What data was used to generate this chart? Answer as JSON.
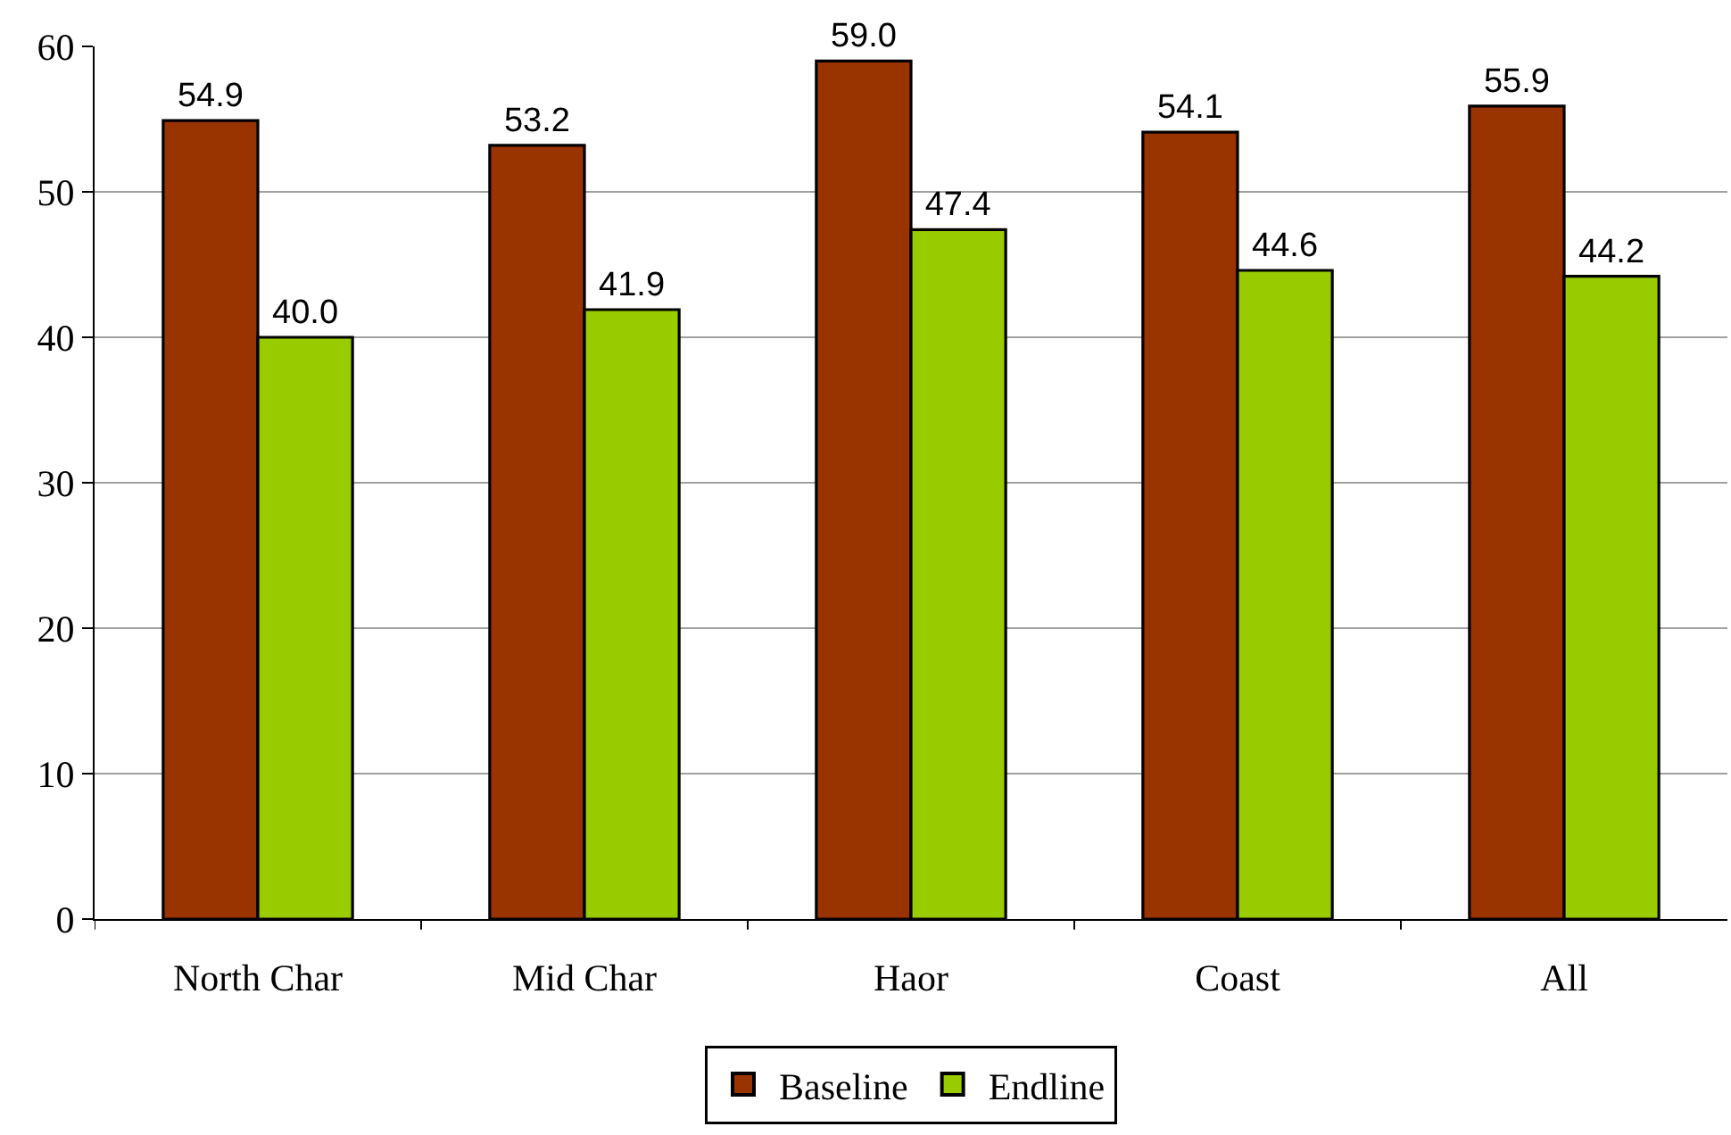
{
  "chart_data": {
    "type": "bar",
    "categories": [
      "North Char",
      "Mid Char",
      "Haor",
      "Coast",
      "All"
    ],
    "series": [
      {
        "name": "Baseline",
        "color": "#993300",
        "values": [
          54.9,
          53.2,
          59.0,
          54.1,
          55.9
        ],
        "value_labels": [
          "54.9",
          "53.2",
          "59.0",
          "54.1",
          "55.9"
        ]
      },
      {
        "name": "Endline",
        "color": "#99cc00",
        "values": [
          40.0,
          41.9,
          47.4,
          44.6,
          44.2
        ],
        "value_labels": [
          "40.0",
          "41.9",
          "47.4",
          "44.6",
          "44.2"
        ]
      }
    ],
    "ylim": [
      0,
      60
    ],
    "yticks": [
      0,
      10,
      20,
      30,
      40,
      50,
      60
    ],
    "grid": "y",
    "legend": "bottom"
  }
}
